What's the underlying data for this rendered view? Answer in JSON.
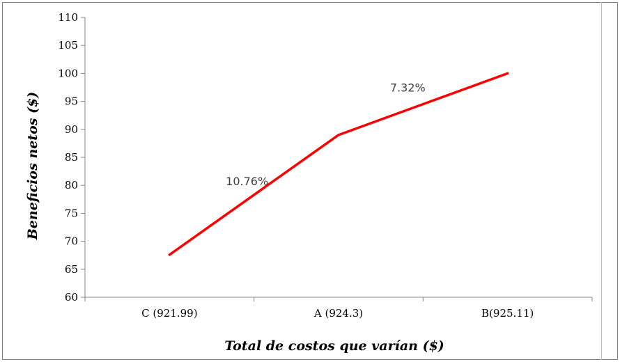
{
  "chart_data": {
    "type": "line",
    "categories": [
      "C (921.99)",
      "A (924.3)",
      "B(925.11)"
    ],
    "series": [
      {
        "values": [
          67.6,
          89.0,
          100.0
        ],
        "color": "#ff0000"
      }
    ],
    "ylim": [
      60,
      110
    ],
    "yticks": [
      60,
      65,
      70,
      75,
      80,
      85,
      90,
      95,
      100,
      105,
      110
    ],
    "xlabel": "Total de costos que varían ($)",
    "ylabel": "Beneficios netos ($)",
    "annotations": [
      {
        "text": "10.76%",
        "segment": [
          0,
          1
        ]
      },
      {
        "text": "7.32%",
        "segment": [
          1,
          2
        ]
      }
    ],
    "grid": false,
    "legend": "none"
  }
}
